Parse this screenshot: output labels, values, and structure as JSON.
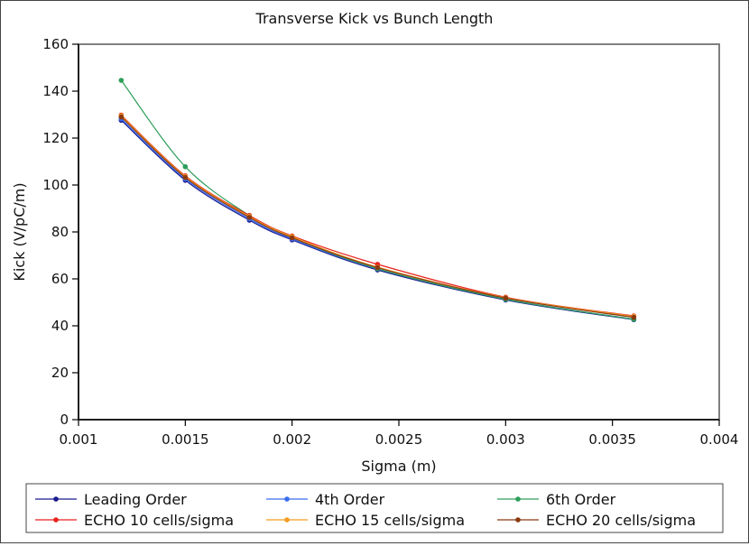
{
  "chart_data": {
    "type": "line",
    "title": "Transverse Kick vs Bunch Length",
    "xlabel": "Sigma (m)",
    "ylabel": "Kick (V/pC/m)",
    "xlim": [
      0.001,
      0.004
    ],
    "ylim": [
      0,
      160
    ],
    "x_ticks": [
      "0.001",
      "0.0015",
      "0.002",
      "0.0025",
      "0.003",
      "0.0035",
      "0.004"
    ],
    "x_tick_values": [
      0.001,
      0.0015,
      0.002,
      0.0025,
      0.003,
      0.0035,
      0.004
    ],
    "y_ticks": [
      "0",
      "20",
      "40",
      "60",
      "80",
      "100",
      "120",
      "140",
      "160"
    ],
    "y_tick_values": [
      0,
      20,
      40,
      60,
      80,
      100,
      120,
      140,
      160
    ],
    "grid": false,
    "legend_position": "bottom",
    "x": [
      0.0012,
      0.0015,
      0.0018,
      0.002,
      0.0024,
      0.003,
      0.0036
    ],
    "series": [
      {
        "name": "Leading Order",
        "color": "#1a1a8c",
        "values": [
          127.6,
          102.0,
          85.0,
          76.6,
          63.8,
          51.0,
          42.6
        ]
      },
      {
        "name": "4th Order",
        "color": "#3a6cf0",
        "values": [
          128.2,
          102.6,
          85.6,
          77.0,
          64.2,
          51.3,
          42.8
        ]
      },
      {
        "name": "6th Order",
        "color": "#2e9e5b",
        "values": [
          144.6,
          107.8,
          87.0,
          77.6,
          64.3,
          51.3,
          42.8
        ]
      },
      {
        "name": "ECHO 10 cells/sigma",
        "color": "#e8221c",
        "values": [
          129.8,
          103.9,
          87.0,
          78.3,
          66.2,
          52.2,
          44.2
        ]
      },
      {
        "name": "ECHO 15 cells/sigma",
        "color": "#f39c1f",
        "values": [
          129.5,
          103.6,
          86.6,
          78.0,
          65.0,
          52.0,
          44.0
        ]
      },
      {
        "name": "ECHO 20 cells/sigma",
        "color": "#8b3a10",
        "values": [
          129.0,
          103.2,
          86.2,
          77.5,
          64.8,
          51.8,
          43.6
        ]
      }
    ]
  }
}
